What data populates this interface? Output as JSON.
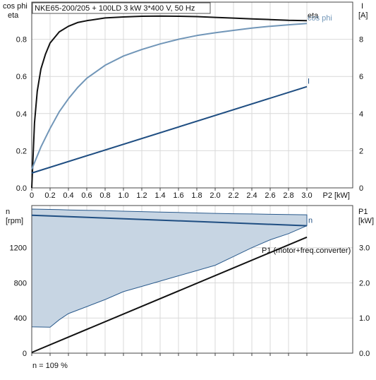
{
  "colors": {
    "eta": "#111111",
    "cos_phi": "#7196b8",
    "current": "#1f4e82",
    "speed": "#1f4e82",
    "speed_band_fill": "#c7d5e3",
    "speed_band_edge": "#2a5a8c",
    "p1": "#111111"
  },
  "footnote": "n = 109 %",
  "chart_data": [
    {
      "type": "line",
      "title": "NKE65-200/205 + 100LD   3 kW   3*400 V, 50 Hz",
      "xlabel": "P2 [kW]",
      "ylabel_left": [
        "cos phi",
        "eta"
      ],
      "ylabel_right": [
        "I",
        "[A]"
      ],
      "xlim": [
        0,
        3.0
      ],
      "ylim_left": [
        0,
        1.0
      ],
      "ylim_right": [
        0,
        10
      ],
      "x_ticks": [
        "0",
        "0.2",
        "0.4",
        "0.6",
        "0.8",
        "1.0",
        "1.2",
        "1.4",
        "1.6",
        "1.8",
        "2.0",
        "2.2",
        "2.4",
        "2.6",
        "2.8",
        "3.0"
      ],
      "y_ticks_left": [
        "0.0",
        "0.2",
        "0.4",
        "0.6",
        "0.8"
      ],
      "y_ticks_right": [
        "0",
        "2",
        "4",
        "6",
        "8"
      ],
      "grid": true,
      "series": [
        {
          "name": "eta",
          "axis": "left",
          "x": [
            0.0,
            0.03,
            0.06,
            0.1,
            0.15,
            0.2,
            0.3,
            0.4,
            0.5,
            0.6,
            0.8,
            1.0,
            1.2,
            1.4,
            1.6,
            1.8,
            2.0,
            2.2,
            2.4,
            2.6,
            2.8,
            3.0
          ],
          "values": [
            0.0,
            0.35,
            0.52,
            0.64,
            0.72,
            0.78,
            0.84,
            0.87,
            0.89,
            0.9,
            0.915,
            0.92,
            0.924,
            0.925,
            0.924,
            0.922,
            0.918,
            0.914,
            0.91,
            0.906,
            0.902,
            0.9
          ]
        },
        {
          "name": "cos phi",
          "axis": "left",
          "x": [
            0.0,
            0.05,
            0.1,
            0.2,
            0.3,
            0.4,
            0.5,
            0.6,
            0.8,
            1.0,
            1.2,
            1.4,
            1.6,
            1.8,
            2.0,
            2.2,
            2.4,
            2.6,
            2.8,
            3.0
          ],
          "values": [
            0.1,
            0.16,
            0.22,
            0.32,
            0.41,
            0.48,
            0.54,
            0.59,
            0.66,
            0.71,
            0.745,
            0.775,
            0.8,
            0.82,
            0.835,
            0.848,
            0.86,
            0.87,
            0.878,
            0.885
          ]
        },
        {
          "name": "I",
          "axis": "right",
          "x": [
            0.0,
            3.0
          ],
          "values": [
            0.8,
            5.45
          ]
        }
      ]
    },
    {
      "type": "line",
      "xlabel": "",
      "ylabel_left": [
        "n",
        "[rpm]"
      ],
      "ylabel_right": [
        "P1",
        "[kW]"
      ],
      "xlim": [
        0,
        3.0
      ],
      "ylim_left": [
        0,
        1680
      ],
      "ylim_right": [
        0,
        4.2
      ],
      "y_ticks_left": [
        "0",
        "400",
        "800",
        "1200"
      ],
      "y_ticks_right": [
        "0.0",
        "1.0",
        "2.0",
        "3.0"
      ],
      "grid": true,
      "band": {
        "x": [
          0.0,
          0.2,
          0.3,
          0.4,
          0.6,
          0.8,
          1.0,
          1.2,
          1.4,
          1.6,
          1.8,
          2.0,
          2.2,
          2.4,
          2.6,
          2.8,
          3.0
        ],
        "lower": [
          300,
          295,
          380,
          450,
          530,
          610,
          700,
          760,
          820,
          880,
          940,
          1000,
          1100,
          1200,
          1290,
          1360,
          1450
        ],
        "upper": [
          1640,
          1636,
          1633,
          1630,
          1626,
          1621,
          1616,
          1611,
          1606,
          1601,
          1596,
          1591,
          1587,
          1584,
          1580,
          1577,
          1575
        ]
      },
      "series": [
        {
          "name": "n",
          "axis": "left",
          "x": [
            0.0,
            3.0
          ],
          "values": [
            1570,
            1450
          ]
        },
        {
          "name": "P1 (motor+freq.converter)",
          "axis": "right",
          "x": [
            0.0,
            3.0
          ],
          "values": [
            0.02,
            3.3
          ]
        }
      ]
    }
  ]
}
